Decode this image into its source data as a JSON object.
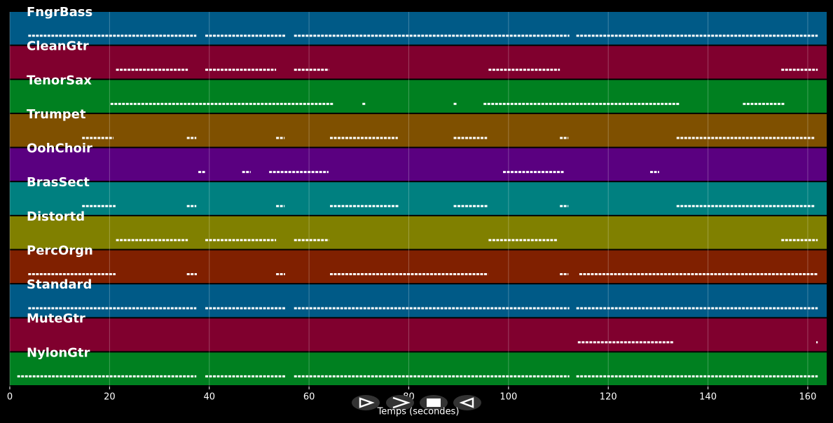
{
  "chart_data": {
    "type": "pianoroll",
    "xlabel": "Temps (secondes)",
    "xlim": [
      0,
      163.8
    ],
    "xticks": [
      0,
      20,
      40,
      60,
      80,
      100,
      120,
      140,
      160
    ],
    "grid": true,
    "tracks": [
      {
        "name": "FngrBass",
        "color": "#005a87",
        "segments": [
          [
            3.7,
            37.4
          ],
          [
            39.2,
            55.2
          ],
          [
            57,
            112.2
          ],
          [
            113.6,
            162
          ]
        ]
      },
      {
        "name": "CleanGtr",
        "color": "#80002e",
        "segments": [
          [
            21.3,
            35.7
          ],
          [
            39.2,
            53.4
          ],
          [
            57,
            64
          ],
          [
            96,
            110.3
          ],
          [
            154.7,
            162
          ]
        ]
      },
      {
        "name": "TenorSax",
        "color": "#008020",
        "segments": [
          [
            20.2,
            64.8
          ],
          [
            70.7,
            71.4
          ],
          [
            89,
            89.6
          ],
          [
            95,
            134.3
          ],
          [
            147,
            155.4
          ]
        ]
      },
      {
        "name": "Trumpet",
        "color": "#7f5000",
        "segments": [
          [
            14.5,
            20.8
          ],
          [
            35.5,
            37.4
          ],
          [
            53.4,
            55.1
          ],
          [
            64.2,
            77.8
          ],
          [
            89,
            95.7
          ],
          [
            110.3,
            112
          ],
          [
            133.7,
            161.3
          ]
        ]
      },
      {
        "name": "OohChoir",
        "color": "#5a0080",
        "segments": [
          [
            37.8,
            39.3
          ],
          [
            46.6,
            48.3
          ],
          [
            52,
            63.9
          ],
          [
            98.9,
            111.2
          ],
          [
            128.4,
            130.2
          ]
        ]
      },
      {
        "name": "BrasSect",
        "color": "#008080",
        "segments": [
          [
            14.5,
            21.2
          ],
          [
            35.5,
            37.4
          ],
          [
            53.4,
            55.1
          ],
          [
            64.2,
            78.1
          ],
          [
            89,
            95.9
          ],
          [
            110.3,
            112
          ],
          [
            133.7,
            161.5
          ]
        ]
      },
      {
        "name": "Distortd",
        "color": "#808000",
        "segments": [
          [
            21.3,
            35.7
          ],
          [
            39.2,
            53.4
          ],
          [
            57,
            64
          ],
          [
            96,
            109.9
          ],
          [
            154.7,
            162
          ]
        ]
      },
      {
        "name": "PercOrgn",
        "color": "#802000",
        "segments": [
          [
            3.7,
            21.2
          ],
          [
            35.5,
            37.5
          ],
          [
            53.4,
            55.2
          ],
          [
            64.2,
            95.9
          ],
          [
            110.3,
            112
          ],
          [
            114.2,
            162
          ]
        ]
      },
      {
        "name": "Standard",
        "color": "#005a87",
        "segments": [
          [
            3.7,
            37.4
          ],
          [
            39.2,
            55.2
          ],
          [
            57,
            112.2
          ],
          [
            113.6,
            162
          ]
        ]
      },
      {
        "name": "MuteGtr",
        "color": "#80002e",
        "segments": [
          [
            113.9,
            133.2
          ],
          [
            161.7,
            162
          ]
        ]
      },
      {
        "name": "NylonGtr",
        "color": "#008020",
        "segments": [
          [
            1.5,
            37.4
          ],
          [
            39.2,
            55.2
          ],
          [
            57,
            112.2
          ],
          [
            113.6,
            162
          ]
        ]
      }
    ]
  }
}
